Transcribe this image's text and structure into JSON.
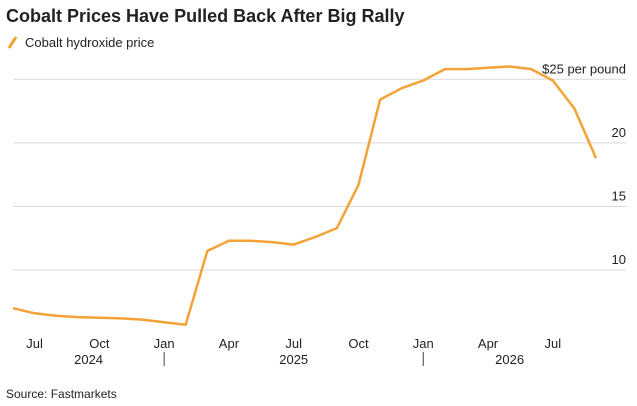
{
  "chart_data": {
    "type": "line",
    "title": "Cobalt Prices Have Pulled Back After Big Rally",
    "source": "Source: Fastmarkets",
    "x": [
      "2024-06",
      "2024-07",
      "2024-08",
      "2024-09",
      "2024-10",
      "2024-11",
      "2024-12",
      "2025-01",
      "2025-02",
      "2025-03",
      "2025-04",
      "2025-05",
      "2025-06",
      "2025-07",
      "2025-08",
      "2025-09",
      "2025-10",
      "2025-11",
      "2025-12",
      "2026-01",
      "2026-02",
      "2026-03",
      "2026-04",
      "2026-05",
      "2026-06",
      "2026-07",
      "2026-08",
      "2026-09"
    ],
    "series": [
      {
        "name": "Cobalt hydroxide price",
        "color": "#f4a236",
        "values": [
          7.0,
          6.6,
          6.4,
          6.3,
          6.25,
          6.2,
          6.1,
          5.9,
          5.7,
          11.5,
          12.3,
          12.3,
          12.2,
          12.0,
          12.6,
          13.3,
          16.7,
          23.4,
          24.3,
          24.9,
          25.8,
          25.8,
          25.9,
          26.0,
          25.8,
          24.9,
          22.7,
          18.8
        ]
      }
    ],
    "xlim": [
      "2024-06",
      "2026-09"
    ],
    "xticks": [
      {
        "value": "2024-07",
        "label": "Jul"
      },
      {
        "value": "2024-10",
        "label": "Oct"
      },
      {
        "value": "2025-01",
        "label": "Jan"
      },
      {
        "value": "2025-04",
        "label": "Apr"
      },
      {
        "value": "2025-07",
        "label": "Jul"
      },
      {
        "value": "2025-10",
        "label": "Oct"
      },
      {
        "value": "2026-01",
        "label": "Jan"
      },
      {
        "value": "2026-04",
        "label": "Apr"
      },
      {
        "value": "2026-07",
        "label": "Jul"
      }
    ],
    "years": [
      "2024",
      "2025",
      "2026"
    ],
    "ylim": [
      4.5,
      27.3
    ],
    "yticks": [
      10,
      15,
      20,
      {
        "value": 25,
        "label": "$25 per pound"
      }
    ],
    "grid": true
  }
}
